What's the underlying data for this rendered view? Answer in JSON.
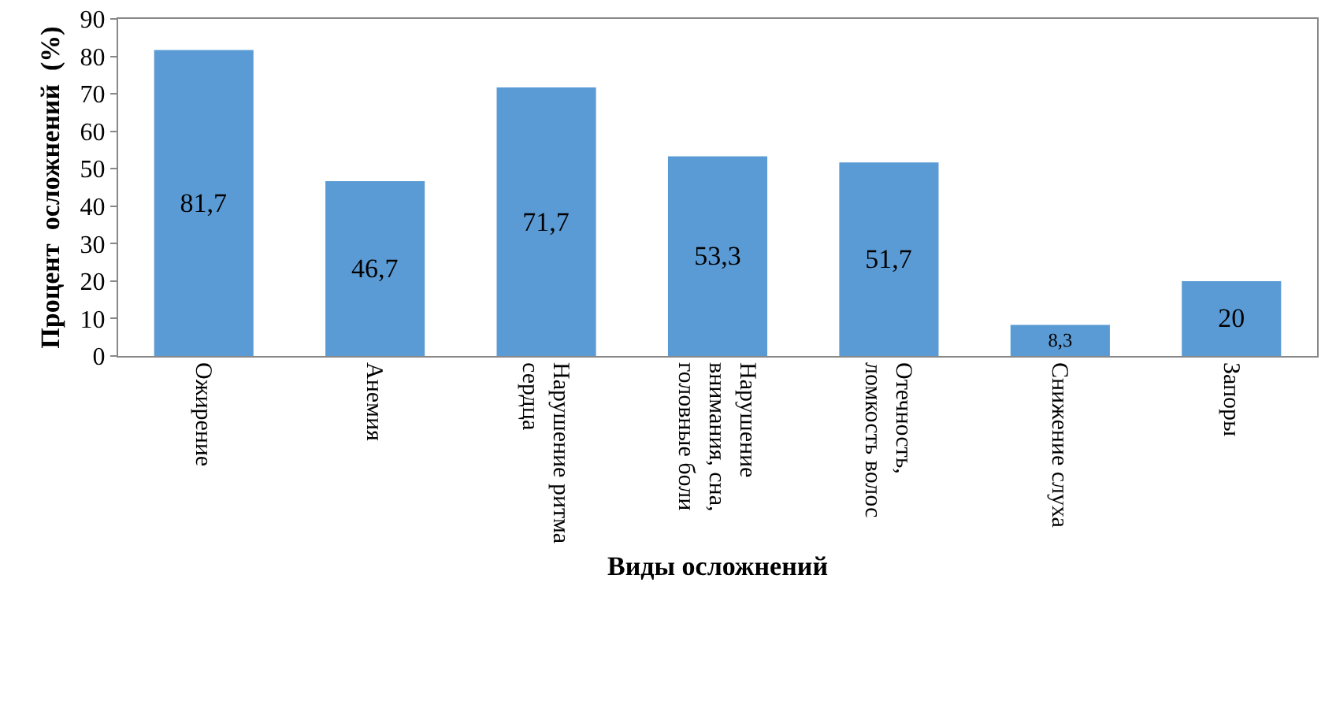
{
  "chart_data": {
    "type": "bar",
    "xlabel": "Виды осложнений",
    "ylabel": "Процент  осложнений  (%)",
    "categories": [
      "Ожирение",
      "Анемия",
      "Нарушение ритма сердца",
      "Нарушение внимания, сна, головные боли",
      "Отечность, ломкость волос",
      "Снижение слуха",
      "Запоры"
    ],
    "values": [
      81.7,
      46.7,
      71.7,
      53.3,
      51.7,
      8.3,
      20
    ],
    "value_labels": [
      "81,7",
      "46,7",
      "71,7",
      "53,3",
      "51,7",
      "8,3",
      "20"
    ],
    "color": "#5b9bd5",
    "ylim": [
      0,
      90
    ],
    "yticks": [
      0,
      10,
      20,
      30,
      40,
      50,
      60,
      70,
      80,
      90
    ],
    "grid": false,
    "legend": false
  }
}
